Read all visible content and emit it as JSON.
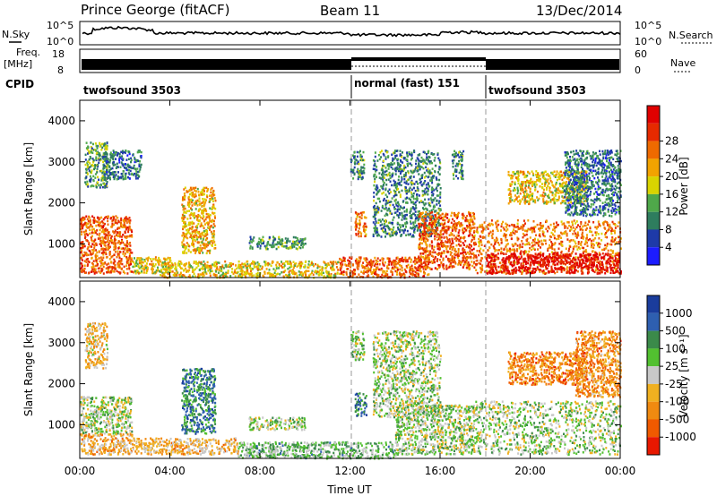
{
  "header": {
    "station": "Prince George (fitACF)",
    "beam": "Beam 11",
    "date": "13/Dec/2014"
  },
  "top_panels": {
    "nsky_label": "N.Sky",
    "nsky_ticks": [
      "10^5",
      "10^0"
    ],
    "nsearch_label": "N.Search",
    "nsearch_ticks": [
      "10^5",
      "10^0"
    ],
    "freq_label_1": "Freq.",
    "freq_label_2": "[MHz]",
    "freq_ticks": [
      "18",
      "8"
    ],
    "nave_label": "Nave",
    "nave_ticks": [
      "60",
      "0"
    ],
    "cpid_label": "CPID",
    "cpid_segments": [
      {
        "name": "twofsound 3503",
        "start_h": 0,
        "end_h": 12
      },
      {
        "name": "normal (fast) 151",
        "start_h": 12,
        "end_h": 18
      },
      {
        "name": "twofsound 3503",
        "start_h": 18,
        "end_h": 24
      }
    ]
  },
  "chart_data": [
    {
      "type": "heatmap",
      "name": "power",
      "xlabel": "Time UT",
      "ylabel": "Slant Range [km]",
      "xlim": [
        0,
        24
      ],
      "ylim": [
        180,
        4500
      ],
      "yticks": [
        1000,
        2000,
        3000,
        4000
      ],
      "xticks": [
        "00:00",
        "04:00",
        "08:00",
        "12:00",
        "16:00",
        "20:00",
        "00:00"
      ],
      "colorbar": {
        "label": "Power [dB]",
        "ticks": [
          "4",
          "8",
          "12",
          "16",
          "20",
          "24",
          "28"
        ],
        "colors": [
          "#1c1cff",
          "#1e3aa8",
          "#2e7d5e",
          "#4fa84a",
          "#d9d400",
          "#f2a300",
          "#ef6a00",
          "#e62a00",
          "#e00000"
        ]
      },
      "regions": [
        {
          "t0": 0.0,
          "t1": 2.3,
          "r0": 300,
          "r1": 1700,
          "level": 0.75
        },
        {
          "t0": 0.2,
          "t1": 1.2,
          "r0": 2400,
          "r1": 3500,
          "level": 0.35
        },
        {
          "t0": 1.0,
          "t1": 2.7,
          "r0": 2600,
          "r1": 3300,
          "level": 0.25
        },
        {
          "t0": 2.3,
          "t1": 4.0,
          "r0": 300,
          "r1": 700,
          "level": 0.55
        },
        {
          "t0": 4.5,
          "t1": 6.0,
          "r0": 800,
          "r1": 2400,
          "level": 0.6
        },
        {
          "t0": 3.5,
          "t1": 11.5,
          "r0": 200,
          "r1": 600,
          "level": 0.55
        },
        {
          "t0": 7.5,
          "t1": 10.0,
          "r0": 900,
          "r1": 1200,
          "level": 0.35
        },
        {
          "t0": 12.0,
          "t1": 12.6,
          "r0": 2600,
          "r1": 3300,
          "level": 0.3
        },
        {
          "t0": 12.2,
          "t1": 12.7,
          "r0": 1200,
          "r1": 1800,
          "level": 0.7
        },
        {
          "t0": 13.0,
          "t1": 16.0,
          "r0": 1200,
          "r1": 3300,
          "level": 0.3
        },
        {
          "t0": 11.5,
          "t1": 15.5,
          "r0": 200,
          "r1": 700,
          "level": 0.75
        },
        {
          "t0": 15.0,
          "t1": 17.5,
          "r0": 400,
          "r1": 1800,
          "level": 0.75
        },
        {
          "t0": 16.5,
          "t1": 17.0,
          "r0": 2600,
          "r1": 3300,
          "level": 0.3
        },
        {
          "t0": 17.5,
          "t1": 24.0,
          "r0": 300,
          "r1": 1600,
          "level": 0.7
        },
        {
          "t0": 18.0,
          "t1": 24.0,
          "r0": 300,
          "r1": 800,
          "level": 0.95
        },
        {
          "t0": 19.0,
          "t1": 22.5,
          "r0": 2000,
          "r1": 2800,
          "level": 0.55
        },
        {
          "t0": 21.5,
          "t1": 24.0,
          "r0": 1700,
          "r1": 3300,
          "level": 0.25
        }
      ]
    },
    {
      "type": "heatmap",
      "name": "velocity",
      "xlabel": "Time UT",
      "ylabel": "Slant Range [km]",
      "xlim": [
        0,
        24
      ],
      "ylim": [
        180,
        4500
      ],
      "yticks": [
        1000,
        2000,
        3000,
        4000
      ],
      "xticks": [
        "00:00",
        "04:00",
        "08:00",
        "12:00",
        "16:00",
        "20:00",
        "00:00"
      ],
      "colorbar": {
        "label": "Velocity [m s⁻¹]",
        "ticks": [
          "1000",
          "500",
          "100",
          "25",
          "-25",
          "-100",
          "-500",
          "-1000"
        ],
        "colors": [
          "#1a3c9c",
          "#2e5fb0",
          "#3b8a4a",
          "#52c030",
          "#c8c8c8",
          "#f0b020",
          "#f08a10",
          "#f05a00",
          "#e81800"
        ]
      },
      "regions": [
        {
          "t0": 0.0,
          "t1": 2.3,
          "r0": 800,
          "r1": 1700,
          "level": 0.45
        },
        {
          "t0": 0.0,
          "t1": 2.3,
          "r0": 300,
          "r1": 800,
          "level": 0.65
        },
        {
          "t0": 0.2,
          "t1": 1.2,
          "r0": 2400,
          "r1": 3500,
          "level": 0.6
        },
        {
          "t0": 2.3,
          "t1": 7.0,
          "r0": 300,
          "r1": 700,
          "level": 0.62
        },
        {
          "t0": 4.5,
          "t1": 6.0,
          "r0": 800,
          "r1": 2400,
          "level": 0.25
        },
        {
          "t0": 7.0,
          "t1": 14.0,
          "r0": 200,
          "r1": 600,
          "level": 0.38
        },
        {
          "t0": 7.5,
          "t1": 10.0,
          "r0": 900,
          "r1": 1200,
          "level": 0.45
        },
        {
          "t0": 12.0,
          "t1": 12.6,
          "r0": 2600,
          "r1": 3300,
          "level": 0.45
        },
        {
          "t0": 12.2,
          "t1": 12.7,
          "r0": 1200,
          "r1": 1800,
          "level": 0.2
        },
        {
          "t0": 13.0,
          "t1": 16.0,
          "r0": 1200,
          "r1": 3300,
          "level": 0.45
        },
        {
          "t0": 14.0,
          "t1": 17.5,
          "r0": 300,
          "r1": 1500,
          "level": 0.45
        },
        {
          "t0": 17.5,
          "t1": 24.0,
          "r0": 300,
          "r1": 1600,
          "level": 0.45
        },
        {
          "t0": 19.0,
          "t1": 22.5,
          "r0": 2000,
          "r1": 2800,
          "level": 0.75
        },
        {
          "t0": 22.0,
          "t1": 24.0,
          "r0": 1700,
          "r1": 3300,
          "level": 0.72
        }
      ]
    }
  ]
}
